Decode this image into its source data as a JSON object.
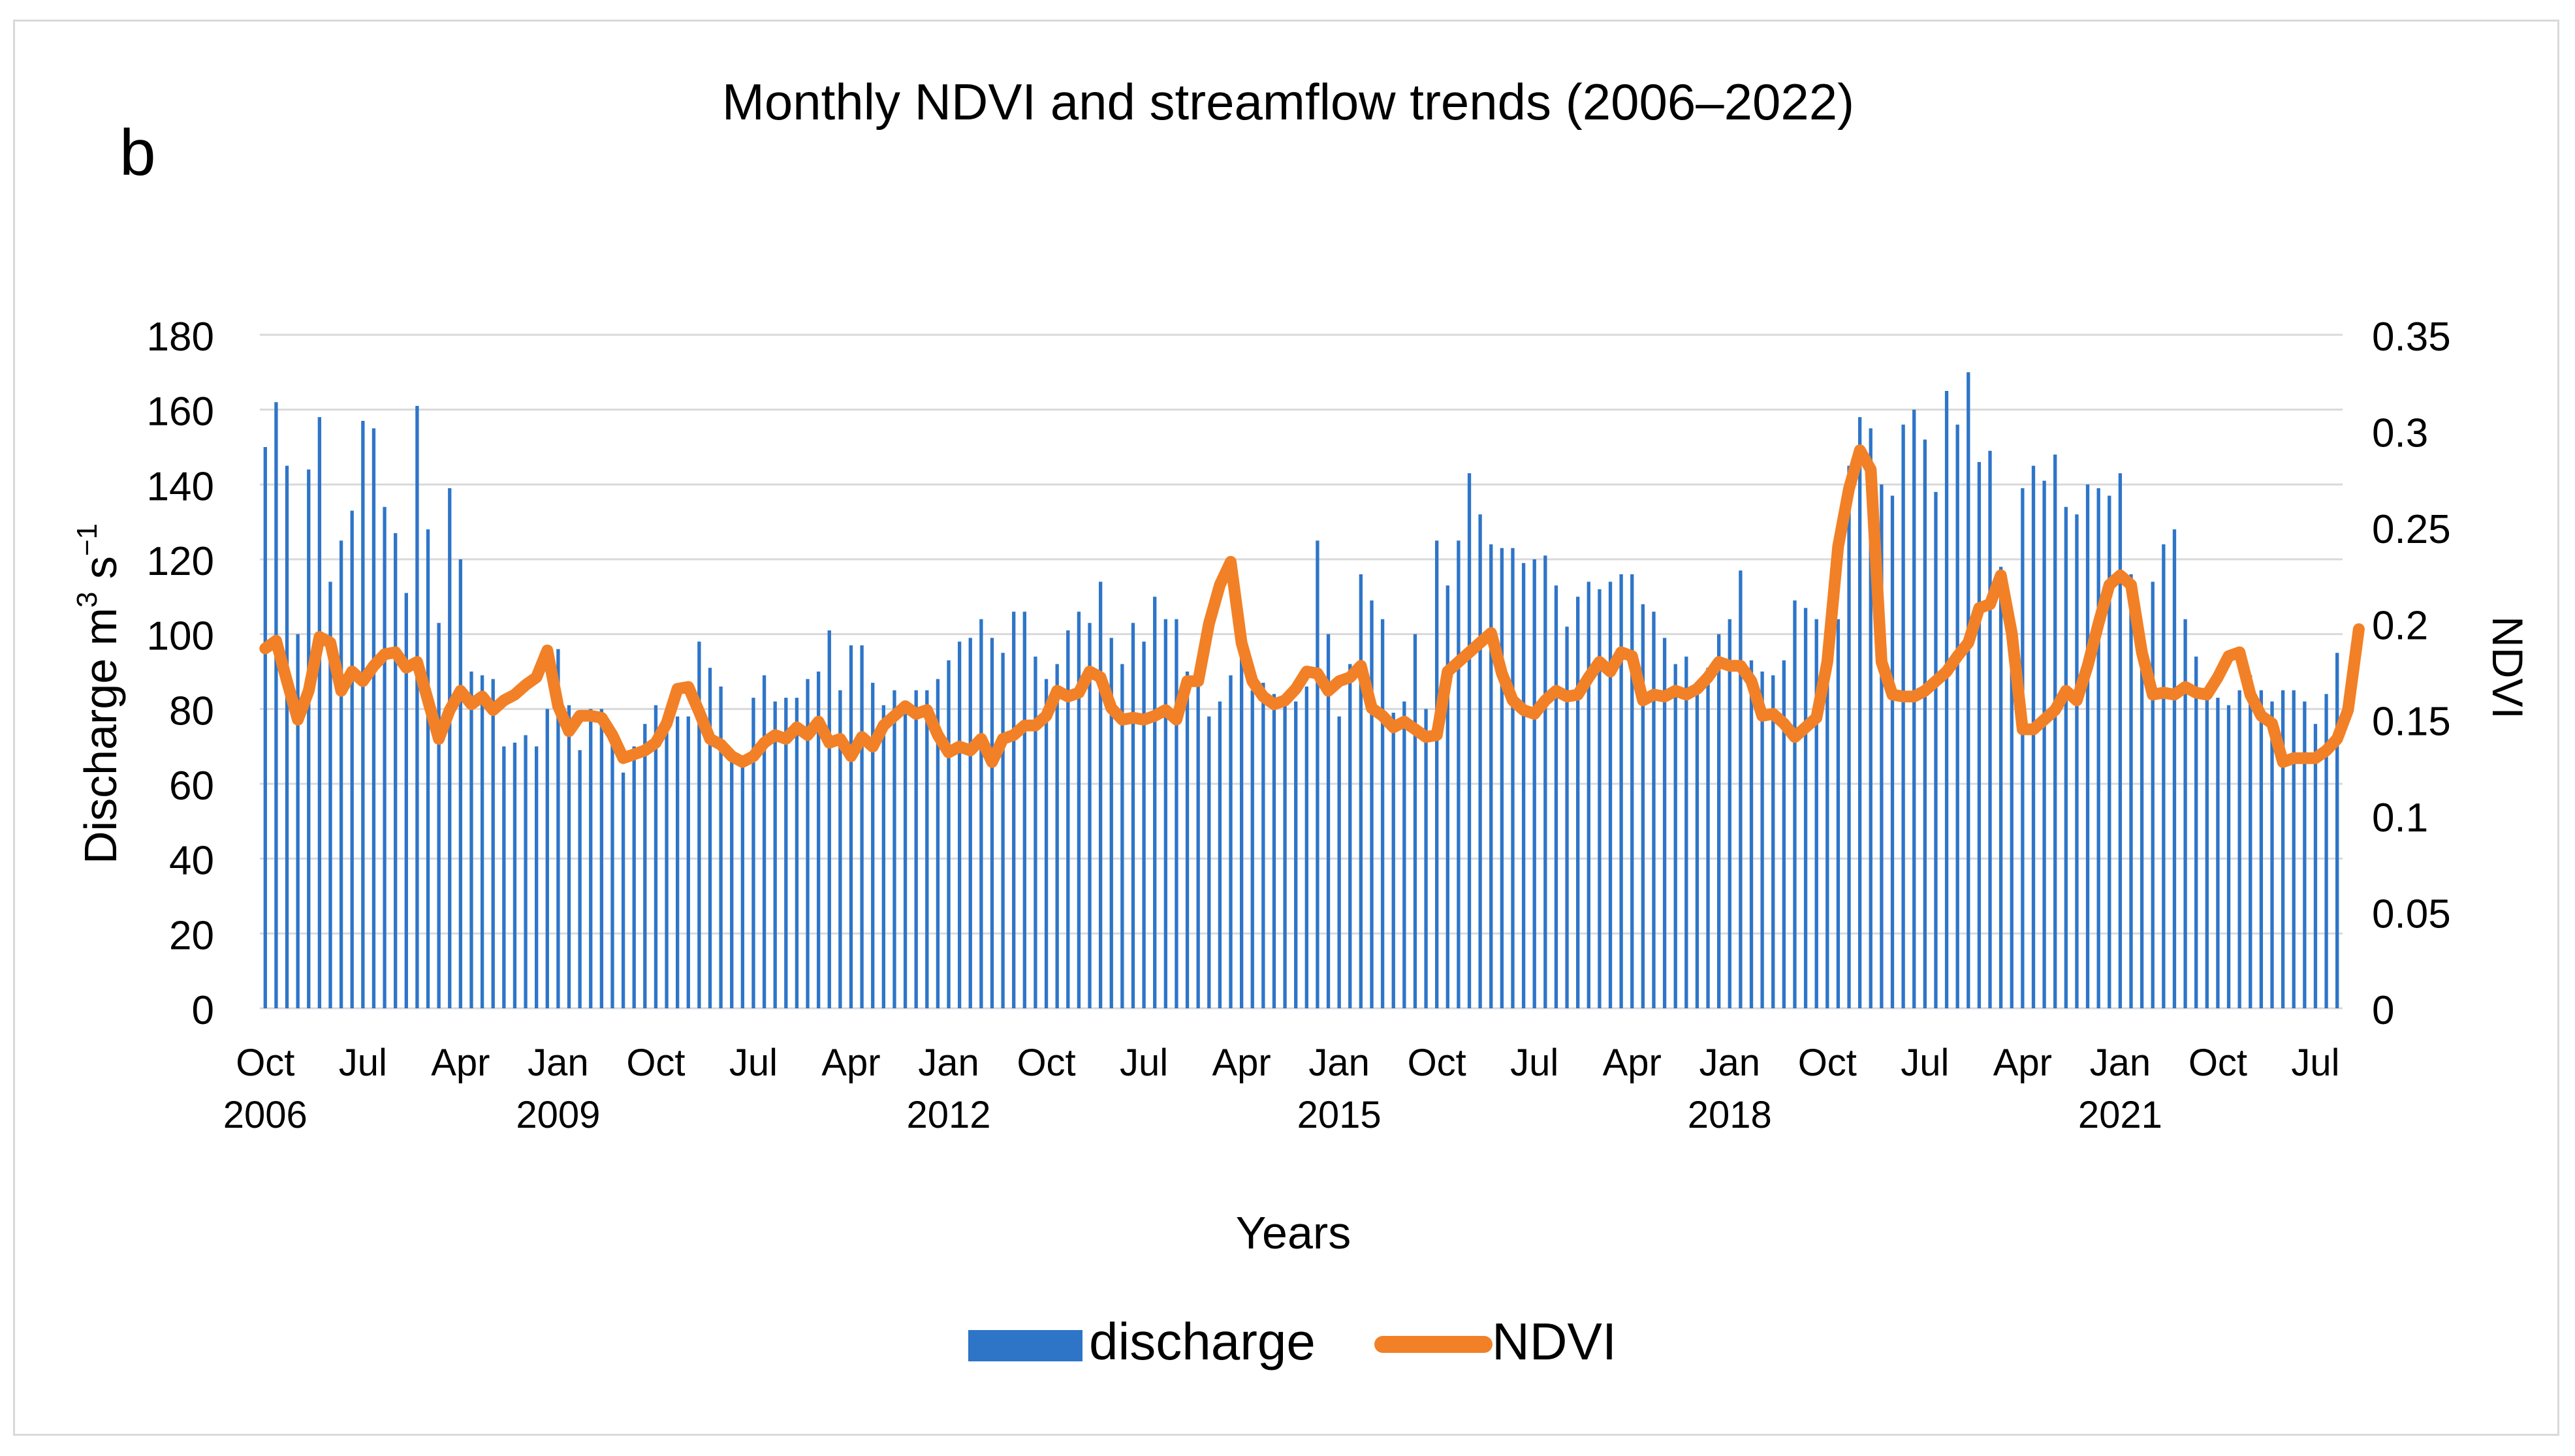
{
  "chart_data": {
    "type": "bar",
    "panel_label": "b",
    "title": "Monthly NDVI and streamflow trends (2006–2022)",
    "xlabel": "Years",
    "ylabel_left_main": "Discharge m",
    "ylabel_left_sup1": "3",
    "ylabel_left_mid": " s",
    "ylabel_left_sup2": "−1",
    "ylabel_right": "NDVI",
    "ylim_left": [
      0,
      180
    ],
    "ylim_right": [
      0,
      0.35
    ],
    "yticks_left": [
      "0",
      "20",
      "40",
      "60",
      "80",
      "100",
      "120",
      "140",
      "160",
      "180"
    ],
    "yticks_right": [
      "0",
      "0.05",
      "0.1",
      "0.15",
      "0.2",
      "0.25",
      "0.3",
      "0.35"
    ],
    "x_tick_labels": [
      {
        "month": "Oct",
        "year": "2006",
        "index": 0
      },
      {
        "month": "Jul",
        "year": "",
        "index": 9
      },
      {
        "month": "Apr",
        "year": "",
        "index": 18
      },
      {
        "month": "Jan",
        "year": "2009",
        "index": 27
      },
      {
        "month": "Oct",
        "year": "",
        "index": 36
      },
      {
        "month": "Jul",
        "year": "",
        "index": 45
      },
      {
        "month": "Apr",
        "year": "",
        "index": 54
      },
      {
        "month": "Jan",
        "year": "2012",
        "index": 63
      },
      {
        "month": "Oct",
        "year": "",
        "index": 72
      },
      {
        "month": "Jul",
        "year": "",
        "index": 81
      },
      {
        "month": "Apr",
        "year": "",
        "index": 90
      },
      {
        "month": "Jan",
        "year": "2015",
        "index": 99
      },
      {
        "month": "Oct",
        "year": "",
        "index": 108
      },
      {
        "month": "Jul",
        "year": "",
        "index": 117
      },
      {
        "month": "Apr",
        "year": "",
        "index": 126
      },
      {
        "month": "Jan",
        "year": "2018",
        "index": 135
      },
      {
        "month": "Oct",
        "year": "",
        "index": 144
      },
      {
        "month": "Jul",
        "year": "",
        "index": 153
      },
      {
        "month": "Apr",
        "year": "",
        "index": 162
      },
      {
        "month": "Jan",
        "year": "2021",
        "index": 171
      },
      {
        "month": "Oct",
        "year": "",
        "index": 180
      },
      {
        "month": "Jul",
        "year": "",
        "index": 189
      }
    ],
    "grid": true,
    "legend_position": "bottom",
    "series": [
      {
        "name": "discharge",
        "type": "bar",
        "axis": "left",
        "color": "#2e75c8",
        "values": [
          150,
          162,
          145,
          100,
          144,
          158,
          114,
          125,
          133,
          157,
          155,
          134,
          127,
          111,
          161,
          128,
          103,
          139,
          120,
          90,
          89,
          88,
          70,
          71,
          73,
          70,
          80,
          96,
          81,
          69,
          80,
          80,
          75,
          63,
          70,
          76,
          81,
          77,
          78,
          78,
          98,
          91,
          86,
          68,
          65,
          83,
          89,
          82,
          83,
          83,
          88,
          90,
          101,
          85,
          97,
          97,
          87,
          81,
          85,
          82,
          85,
          85,
          88,
          93,
          98,
          99,
          104,
          99,
          95,
          106,
          106,
          94,
          88,
          92,
          101,
          106,
          103,
          114,
          99,
          92,
          103,
          98,
          110,
          104,
          104,
          90,
          88,
          78,
          82,
          89,
          95,
          85,
          87,
          84,
          84,
          82,
          86,
          125,
          100,
          78,
          92,
          116,
          109,
          104,
          79,
          82,
          100,
          80,
          125,
          113,
          125,
          143,
          132,
          124,
          123,
          123,
          119,
          120,
          121,
          113,
          102,
          110,
          114,
          112,
          114,
          116,
          116,
          108,
          106,
          99,
          92,
          94,
          87,
          91,
          100,
          104,
          117,
          93,
          90,
          89,
          93,
          109,
          107,
          104,
          99,
          104,
          145,
          158,
          155,
          140,
          137,
          156,
          160,
          152,
          138,
          165,
          156,
          170,
          146,
          149,
          118,
          100,
          139,
          145,
          141,
          148,
          134,
          132,
          140,
          139,
          137,
          143,
          116,
          101,
          114,
          124,
          128,
          104,
          94,
          86,
          83,
          81,
          85,
          89,
          85,
          82,
          85,
          85,
          82,
          76,
          84,
          95
        ]
      },
      {
        "name": "NDVI",
        "type": "line",
        "axis": "right",
        "color": "#f28026",
        "values": [
          0.187,
          0.191,
          0.17,
          0.15,
          0.165,
          0.193,
          0.19,
          0.165,
          0.175,
          0.17,
          0.178,
          0.184,
          0.185,
          0.177,
          0.18,
          0.16,
          0.14,
          0.155,
          0.165,
          0.158,
          0.162,
          0.155,
          0.16,
          0.163,
          0.168,
          0.172,
          0.186,
          0.157,
          0.144,
          0.152,
          0.152,
          0.151,
          0.142,
          0.13,
          0.132,
          0.134,
          0.138,
          0.148,
          0.166,
          0.167,
          0.154,
          0.14,
          0.137,
          0.131,
          0.128,
          0.131,
          0.138,
          0.142,
          0.14,
          0.146,
          0.142,
          0.149,
          0.138,
          0.14,
          0.131,
          0.141,
          0.136,
          0.147,
          0.152,
          0.157,
          0.153,
          0.155,
          0.142,
          0.133,
          0.136,
          0.134,
          0.14,
          0.128,
          0.14,
          0.142,
          0.147,
          0.147,
          0.152,
          0.165,
          0.162,
          0.164,
          0.175,
          0.172,
          0.156,
          0.15,
          0.151,
          0.15,
          0.152,
          0.155,
          0.15,
          0.17,
          0.17,
          0.2,
          0.22,
          0.232,
          0.19,
          0.17,
          0.162,
          0.158,
          0.16,
          0.166,
          0.175,
          0.174,
          0.165,
          0.17,
          0.172,
          0.178,
          0.156,
          0.152,
          0.146,
          0.149,
          0.145,
          0.141,
          0.142,
          0.175,
          0.18,
          0.185,
          0.19,
          0.195,
          0.174,
          0.16,
          0.155,
          0.153,
          0.16,
          0.165,
          0.162,
          0.163,
          0.172,
          0.18,
          0.175,
          0.185,
          0.183,
          0.16,
          0.163,
          0.162,
          0.165,
          0.163,
          0.166,
          0.172,
          0.18,
          0.178,
          0.178,
          0.17,
          0.152,
          0.153,
          0.148,
          0.141,
          0.146,
          0.151,
          0.18,
          0.24,
          0.27,
          0.29,
          0.28,
          0.18,
          0.163,
          0.162,
          0.162,
          0.165,
          0.17,
          0.175,
          0.183,
          0.19,
          0.208,
          0.21,
          0.225,
          0.195,
          0.145,
          0.145,
          0.15,
          0.155,
          0.165,
          0.16,
          0.178,
          0.2,
          0.22,
          0.225,
          0.22,
          0.185,
          0.163,
          0.164,
          0.163,
          0.167,
          0.164,
          0.163,
          0.172,
          0.183,
          0.185,
          0.163,
          0.152,
          0.148,
          0.128,
          0.13,
          0.13,
          0.13,
          0.134,
          0.14,
          0.155,
          0.197
        ]
      }
    ]
  }
}
